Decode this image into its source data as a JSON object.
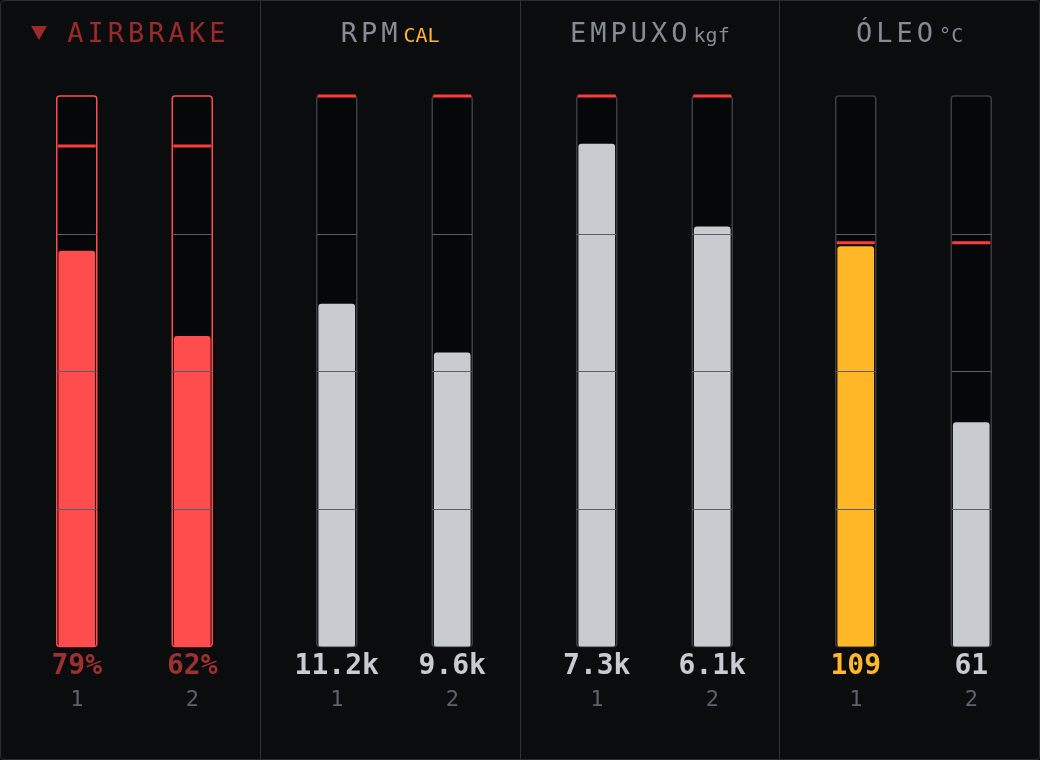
{
  "chart_data": [
    {
      "type": "bar",
      "title": "AIRBRAKE",
      "categories": [
        "1",
        "2"
      ],
      "values": [
        79,
        62
      ],
      "value_labels": [
        "79%",
        "62%"
      ],
      "colors": [
        "#ff4d4d",
        "#ff4d4d"
      ],
      "ylim": [
        0,
        110
      ],
      "tick_labels": "x",
      "ref_lines": [
        {
          "axis": "y",
          "value": 100,
          "color": "#ff3b3b"
        }
      ]
    },
    {
      "type": "bar",
      "title": "RPM",
      "subtitle": "CAL",
      "categories": [
        "1",
        "2"
      ],
      "values": [
        11.2,
        9.6
      ],
      "value_labels": [
        "11.2k",
        "9.6k"
      ],
      "colors": [
        "#c8cbd0",
        "#c8cbd0"
      ],
      "ylim": [
        0,
        18
      ],
      "tick_labels": "x",
      "ref_lines": [
        {
          "axis": "y",
          "value": 18,
          "color": "#ff3b3b"
        }
      ]
    },
    {
      "type": "bar",
      "title": "EMPUXO",
      "subtitle": "kgf",
      "categories": [
        "1",
        "2"
      ],
      "values": [
        7.3,
        6.1
      ],
      "value_labels": [
        "7.3k",
        "6.1k"
      ],
      "colors": [
        "#c8cbd0",
        "#c8cbd0"
      ],
      "ylim": [
        0,
        8
      ],
      "tick_labels": "x",
      "ref_lines": [
        {
          "axis": "y",
          "value": 8,
          "color": "#ff3b3b"
        }
      ]
    },
    {
      "type": "bar",
      "title": "ÓLEO",
      "subtitle": "°C",
      "categories": [
        "1",
        "2"
      ],
      "values": [
        109,
        61
      ],
      "data_labels": true,
      "colors": [
        "#ffb627",
        "#c8cbd0"
      ],
      "ylim": [
        0,
        150
      ],
      "tick_labels": "x",
      "ref_lines": [
        {
          "axis": "y",
          "value": 110,
          "color": "#ff3b3b"
        }
      ]
    }
  ]
}
